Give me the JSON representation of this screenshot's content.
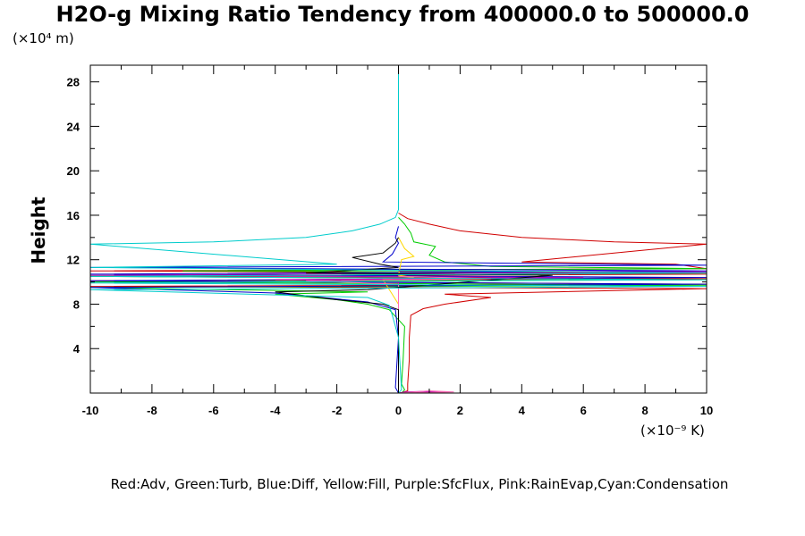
{
  "chart_data": {
    "type": "line",
    "title": "H2O-g Mixing Ratio Tendency from 400000.0 to 500000.0",
    "ylabel": "Height",
    "y_unit_label": "(×10⁴ m)",
    "x_unit_label": "(×10⁻⁹ K)",
    "legend_text": "Red:Adv, Green:Turb, Blue:Diff, Yellow:Fill, Purple:SfcFlux, Pink:RainEvap,Cyan:Condensation",
    "xlim": [
      -10,
      10
    ],
    "ylim": [
      0,
      29.5
    ],
    "x_ticks": [
      "-10",
      "-8",
      "-6",
      "-4",
      "-2",
      "0",
      "2",
      "4",
      "6",
      "8",
      "10"
    ],
    "y_ticks": [
      "4",
      "8",
      "12",
      "16",
      "20",
      "24",
      "28"
    ],
    "grid": false,
    "series": [
      {
        "color": "#d00000",
        "points": [
          [
            0.05,
            0
          ],
          [
            0.3,
            0.2
          ],
          [
            0.3,
            0.8
          ],
          [
            0.35,
            3
          ],
          [
            0.35,
            5
          ],
          [
            0.4,
            7
          ],
          [
            0.8,
            7.6
          ],
          [
            1.5,
            8
          ],
          [
            3,
            8.6
          ],
          [
            1.5,
            8.9
          ],
          [
            10,
            9.4
          ],
          [
            -10,
            9.6
          ],
          [
            10,
            9.8
          ],
          [
            -10,
            10.1
          ],
          [
            10,
            10.3
          ],
          [
            -10,
            10.5
          ],
          [
            10,
            10.7
          ],
          [
            -10,
            11
          ],
          [
            10,
            11.2
          ],
          [
            9,
            11.6
          ],
          [
            4,
            11.8
          ],
          [
            10,
            13.4
          ],
          [
            7,
            13.6
          ],
          [
            4,
            14
          ],
          [
            2,
            14.6
          ],
          [
            1,
            15.2
          ],
          [
            0.3,
            15.7
          ],
          [
            0,
            16.2
          ]
        ]
      },
      {
        "color": "#00cc00",
        "points": [
          [
            0.1,
            0
          ],
          [
            0.2,
            0.3
          ],
          [
            0.1,
            0.8
          ],
          [
            0.15,
            3
          ],
          [
            0.2,
            6
          ],
          [
            -0.3,
            7.5
          ],
          [
            -1,
            8
          ],
          [
            -2,
            8.4
          ],
          [
            -4,
            8.9
          ],
          [
            -1,
            9.1
          ],
          [
            -10,
            9.5
          ],
          [
            10,
            9.7
          ],
          [
            -10,
            10
          ],
          [
            10,
            10.2
          ],
          [
            -10,
            10.5
          ],
          [
            10,
            10.8
          ],
          [
            -7,
            11
          ],
          [
            10,
            11.2
          ],
          [
            3,
            11.4
          ],
          [
            1.5,
            11.8
          ],
          [
            1,
            12.4
          ],
          [
            1.2,
            13.2
          ],
          [
            0.5,
            13.6
          ],
          [
            0.4,
            14.4
          ],
          [
            0.2,
            15.2
          ],
          [
            0,
            15.8
          ]
        ]
      },
      {
        "color": "#0000cc",
        "points": [
          [
            0,
            0
          ],
          [
            -0.1,
            0.5
          ],
          [
            0,
            5
          ],
          [
            -0.1,
            7.5
          ],
          [
            -1,
            8.2
          ],
          [
            -4,
            9
          ],
          [
            -10,
            9.5
          ],
          [
            10,
            9.8
          ],
          [
            -10,
            10.1
          ],
          [
            10,
            10.4
          ],
          [
            -10,
            10.7
          ],
          [
            10,
            11
          ],
          [
            -10,
            11.3
          ],
          [
            10,
            11.5
          ],
          [
            -0.5,
            11.8
          ],
          [
            -0.2,
            12.5
          ],
          [
            0,
            13.5
          ],
          [
            -0.1,
            14
          ],
          [
            0,
            15
          ]
        ]
      },
      {
        "color": "#ffd700",
        "points": [
          [
            0,
            0
          ],
          [
            0,
            8
          ],
          [
            -0.5,
            10.2
          ],
          [
            0.5,
            10.4
          ],
          [
            0,
            10.6
          ],
          [
            0.1,
            12
          ],
          [
            0.5,
            12.3
          ],
          [
            0.2,
            13
          ],
          [
            0,
            14
          ]
        ]
      },
      {
        "color": "#b000b0",
        "points": [
          [
            0,
            0
          ],
          [
            0.2,
            0.1
          ],
          [
            0.8,
            0.15
          ],
          [
            1.5,
            0.1
          ],
          [
            0,
            0
          ],
          [
            0,
            10
          ],
          [
            -4,
            10.2
          ],
          [
            6,
            10.4
          ],
          [
            -10,
            10.6
          ],
          [
            10,
            10.9
          ],
          [
            0,
            11
          ]
        ]
      },
      {
        "color": "#ff69b4",
        "points": [
          [
            0,
            0
          ],
          [
            1,
            0.2
          ],
          [
            1.8,
            0.1
          ],
          [
            0,
            0
          ],
          [
            0,
            9.8
          ],
          [
            -3,
            10.1
          ],
          [
            3,
            10.3
          ],
          [
            0,
            10.5
          ]
        ]
      },
      {
        "color": "#000000",
        "points": [
          [
            0,
            0
          ],
          [
            0,
            7.5
          ],
          [
            -0.5,
            8
          ],
          [
            -2,
            8.4
          ],
          [
            -4,
            9.1
          ],
          [
            -1,
            9.3
          ],
          [
            5,
            10.6
          ],
          [
            -3,
            10.8
          ],
          [
            0,
            11.3
          ],
          [
            -0.6,
            11.6
          ],
          [
            -1.5,
            12.2
          ],
          [
            -0.5,
            12.6
          ],
          [
            -0.1,
            13.5
          ],
          [
            0,
            14
          ]
        ]
      },
      {
        "color": "#00cccc",
        "points": [
          [
            0,
            0
          ],
          [
            0.1,
            0.3
          ],
          [
            0,
            5
          ],
          [
            -0.2,
            7
          ],
          [
            -0.3,
            7.9
          ],
          [
            -1,
            8.6
          ],
          [
            -10,
            9.3
          ],
          [
            10,
            9.6
          ],
          [
            -10,
            9.9
          ],
          [
            10,
            10.2
          ],
          [
            -10,
            10.5
          ],
          [
            10,
            10.8
          ],
          [
            -10,
            11.3
          ],
          [
            -2,
            11.6
          ],
          [
            -10,
            13.4
          ],
          [
            -6,
            13.6
          ],
          [
            -3,
            14
          ],
          [
            -1.5,
            14.6
          ],
          [
            -0.6,
            15.2
          ],
          [
            -0.1,
            15.8
          ],
          [
            0,
            16.5
          ],
          [
            0,
            29.5
          ]
        ]
      }
    ]
  }
}
